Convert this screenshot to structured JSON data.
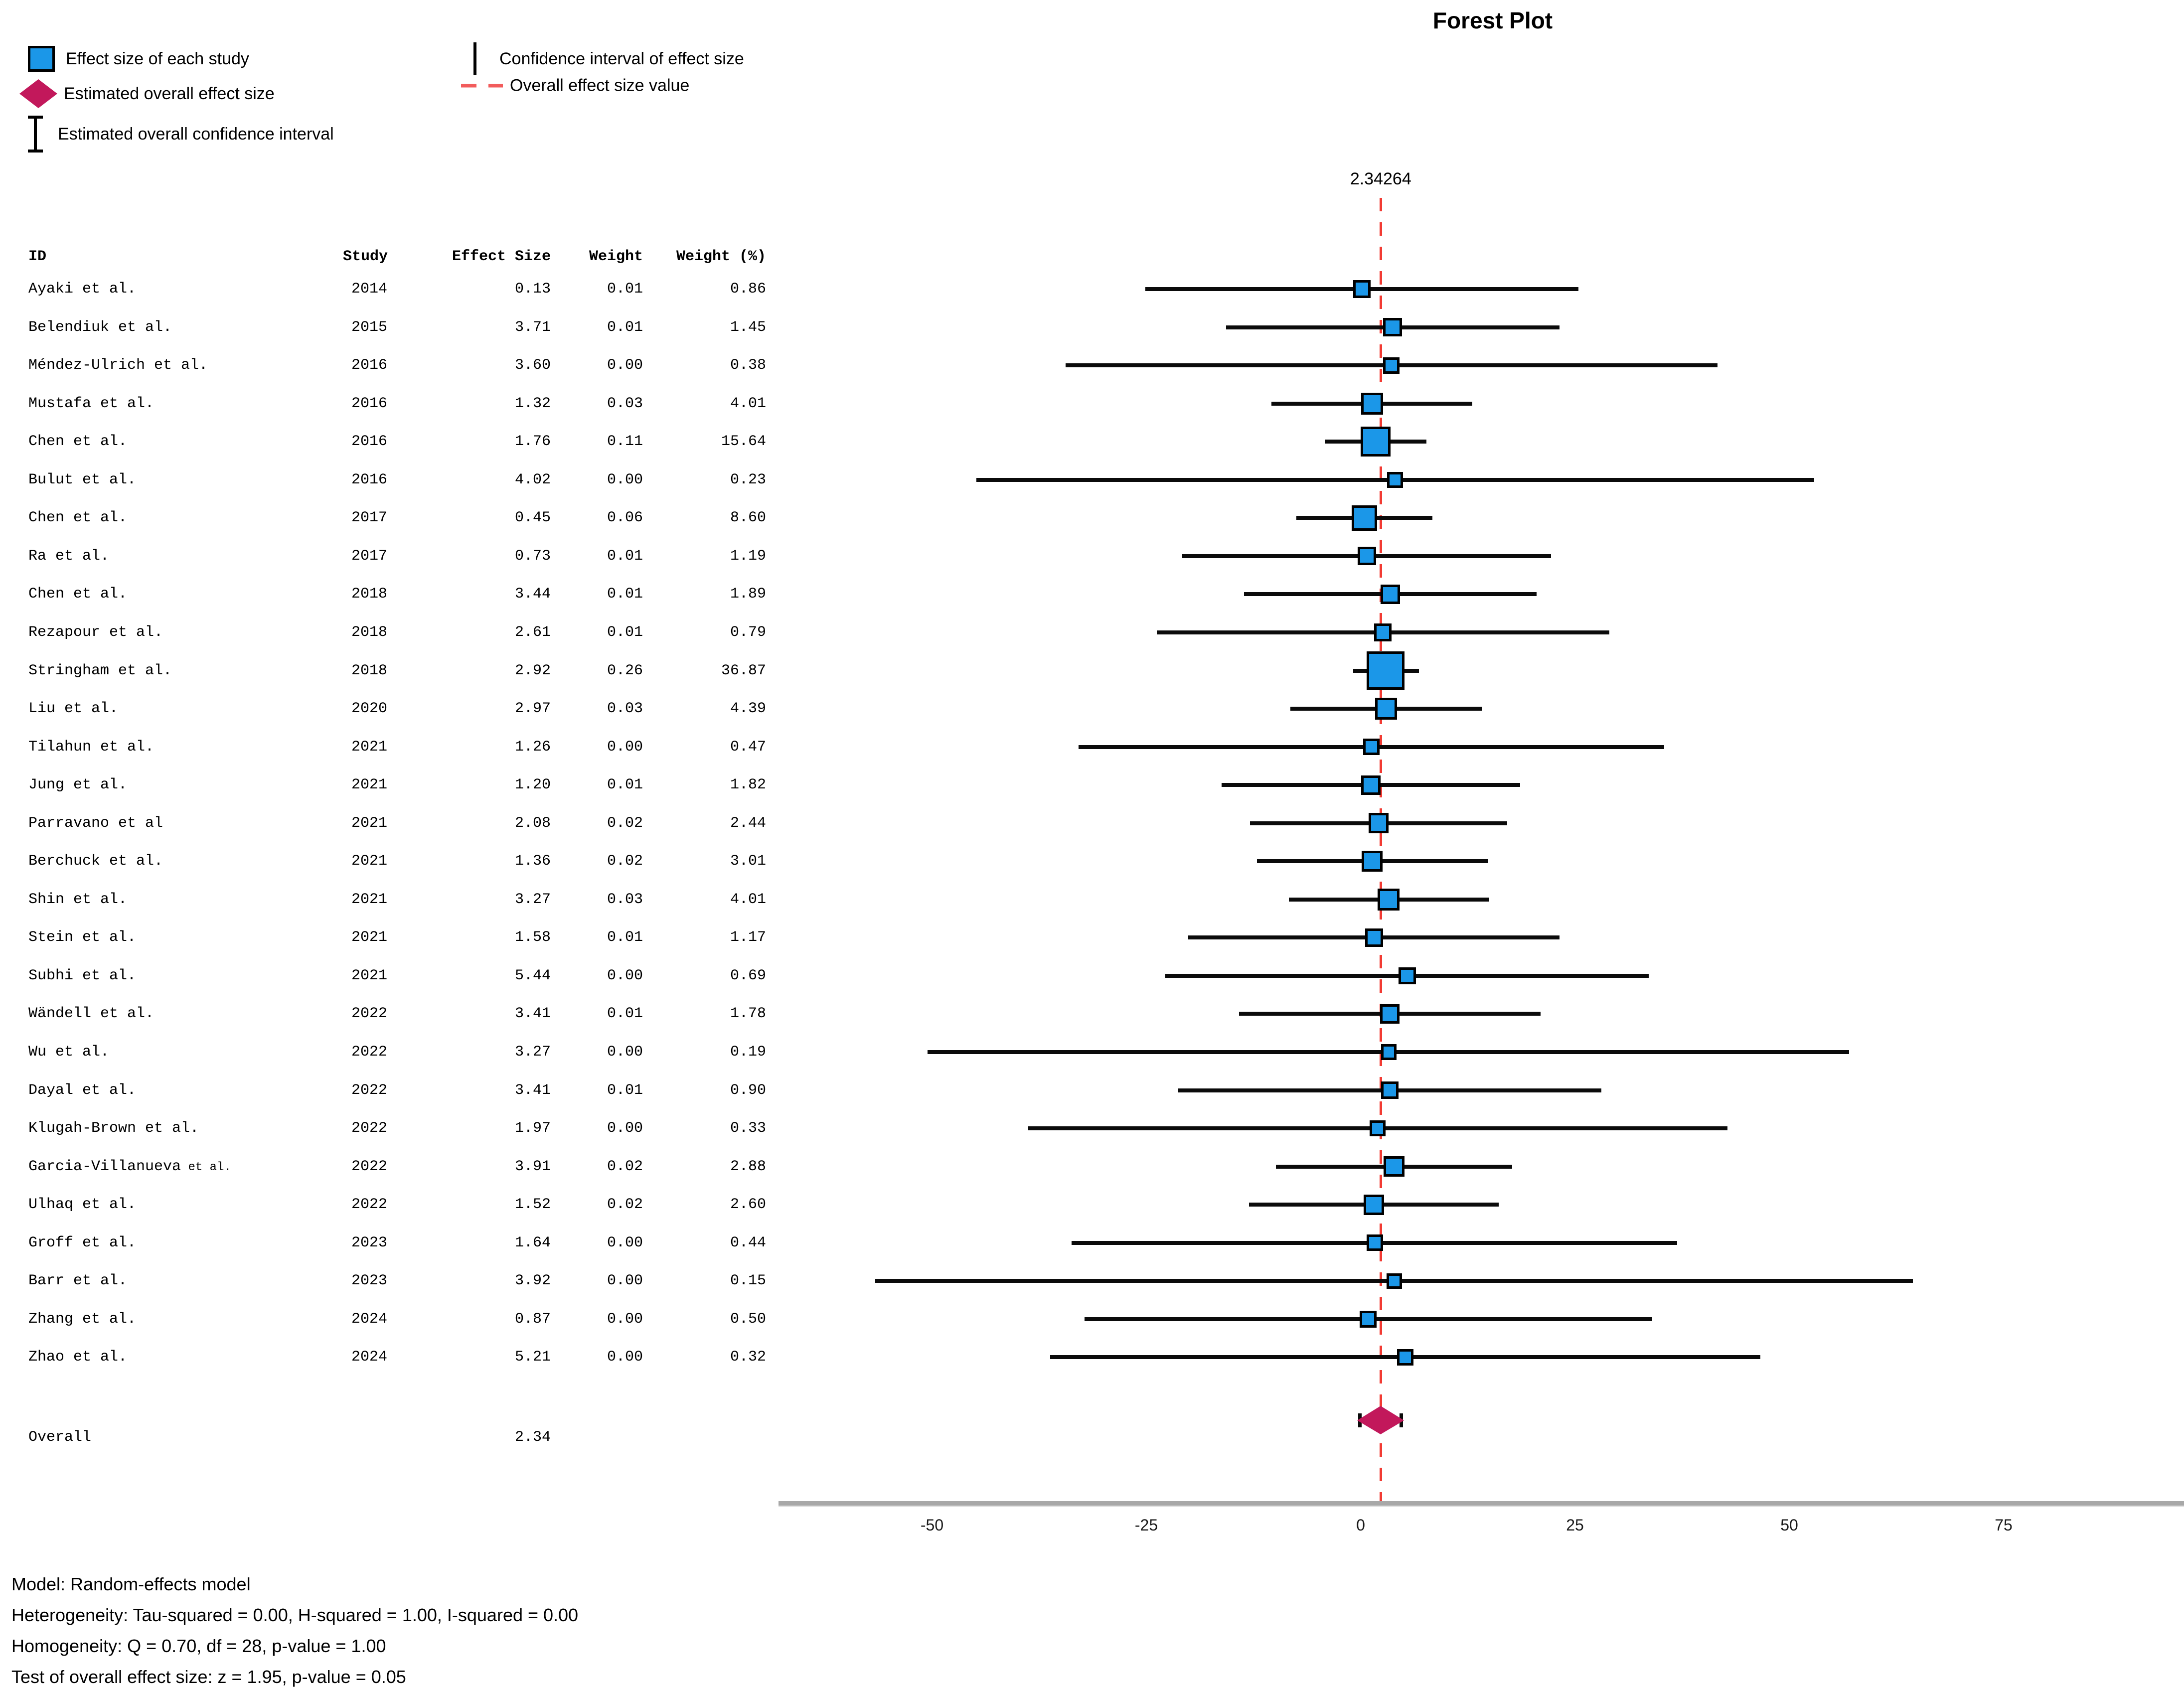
{
  "title": "Forest Plot",
  "effect_line_label": "2.34264",
  "legend": {
    "items": [
      {
        "marker": "square",
        "label": "Effect size of each study"
      },
      {
        "marker": "diamond",
        "label": "Estimated overall effect size"
      },
      {
        "marker": "ibeam",
        "label": "Estimated overall confidence interval"
      },
      {
        "marker": "vline",
        "label": "Confidence interval of effect size"
      },
      {
        "marker": "dashes",
        "label": "Overall effect size value"
      }
    ]
  },
  "table": {
    "headers": [
      "ID",
      "Study",
      "Effect Size",
      "Weight",
      "Weight (%)"
    ]
  },
  "overall": {
    "label": "Overall",
    "effect_text": "2.34",
    "effect": 2.34,
    "ci_low": -0.11,
    "ci_high": 4.79
  },
  "footer": {
    "lines": [
      "Model: Random-effects model",
      "Heterogeneity: Tau-squared = 0.00, H-squared = 1.00, I-squared = 0.00",
      "Homogeneity: Q = 0.70, df = 28, p-value = 1.00",
      "Test of overall effect size: z = 1.95, p-value = 0.05"
    ]
  },
  "colors": {
    "study_marker": "#1b97e8",
    "overall_marker": "#c2185b",
    "ci_line": "#0b0b0b",
    "effect_line": "#f23b33",
    "legend_dash": "#f25c5c",
    "axis_bar": "#a8a8a8"
  },
  "chart_data": {
    "type": "scatter",
    "variant": "forest-plot",
    "title": "Forest Plot",
    "xlabel": "",
    "ylabel": "",
    "x_ticks": [
      -50,
      -25,
      0,
      25,
      50,
      75
    ],
    "x_range": [
      -68,
      96
    ],
    "grid": false,
    "overall_effect": 2.34264,
    "overall_ci": [
      -0.11,
      4.79
    ],
    "studies": [
      {
        "id": "Ayaki et al.",
        "year": "2014",
        "effect": 0.13,
        "weight": 0.01,
        "weight_pct": 0.86,
        "ci_low": -25.1,
        "ci_high": 25.4
      },
      {
        "id": "Belendiuk et al.",
        "year": "2015",
        "effect": 3.71,
        "weight": 0.01,
        "weight_pct": 1.45,
        "ci_low": -15.7,
        "ci_high": 23.2
      },
      {
        "id": "Méndez-Ulrich et al.",
        "year": "2016",
        "effect": 3.6,
        "weight": 0.0,
        "weight_pct": 0.38,
        "ci_low": -34.4,
        "ci_high": 41.6
      },
      {
        "id": "Mustafa et al.",
        "year": "2016",
        "effect": 1.32,
        "weight": 0.03,
        "weight_pct": 4.01,
        "ci_low": -10.4,
        "ci_high": 13.0
      },
      {
        "id": "Chen et al.",
        "year": "2016",
        "effect": 1.76,
        "weight": 0.11,
        "weight_pct": 15.64,
        "ci_low": -4.2,
        "ci_high": 7.7
      },
      {
        "id": "Bulut et al.",
        "year": "2016",
        "effect": 4.02,
        "weight": 0.0,
        "weight_pct": 0.23,
        "ci_low": -44.8,
        "ci_high": 52.9
      },
      {
        "id": "Chen et al.",
        "year": "2017",
        "effect": 0.45,
        "weight": 0.06,
        "weight_pct": 8.6,
        "ci_low": -7.5,
        "ci_high": 8.4
      },
      {
        "id": "Ra et al.",
        "year": "2017",
        "effect": 0.73,
        "weight": 0.01,
        "weight_pct": 1.19,
        "ci_low": -20.8,
        "ci_high": 22.2
      },
      {
        "id": "Chen et al.",
        "year": "2018",
        "effect": 3.44,
        "weight": 0.01,
        "weight_pct": 1.89,
        "ci_low": -13.6,
        "ci_high": 20.5
      },
      {
        "id": "Rezapour et al.",
        "year": "2018",
        "effect": 2.61,
        "weight": 0.01,
        "weight_pct": 0.79,
        "ci_low": -23.8,
        "ci_high": 29.0
      },
      {
        "id": "Stringham et al.",
        "year": "2018",
        "effect": 2.92,
        "weight": 0.26,
        "weight_pct": 36.87,
        "ci_low": -0.9,
        "ci_high": 6.8
      },
      {
        "id": "Liu et al.",
        "year": "2020",
        "effect": 2.97,
        "weight": 0.03,
        "weight_pct": 4.39,
        "ci_low": -8.2,
        "ci_high": 14.2
      },
      {
        "id": "Tilahun et al.",
        "year": "2021",
        "effect": 1.26,
        "weight": 0.0,
        "weight_pct": 0.47,
        "ci_low": -32.9,
        "ci_high": 35.4
      },
      {
        "id": "Jung et al.",
        "year": "2021",
        "effect": 1.2,
        "weight": 0.01,
        "weight_pct": 1.82,
        "ci_low": -16.2,
        "ci_high": 18.6
      },
      {
        "id": "Parravano et al",
        "year": "2021",
        "effect": 2.08,
        "weight": 0.02,
        "weight_pct": 2.44,
        "ci_low": -12.9,
        "ci_high": 17.1
      },
      {
        "id": "Berchuck et al.",
        "year": "2021",
        "effect": 1.36,
        "weight": 0.02,
        "weight_pct": 3.01,
        "ci_low": -12.1,
        "ci_high": 14.9
      },
      {
        "id": "Shin et al.",
        "year": "2021",
        "effect": 3.27,
        "weight": 0.03,
        "weight_pct": 4.01,
        "ci_low": -8.4,
        "ci_high": 15.0
      },
      {
        "id": "Stein et al.",
        "year": "2021",
        "effect": 1.58,
        "weight": 0.01,
        "weight_pct": 1.17,
        "ci_low": -20.1,
        "ci_high": 23.2
      },
      {
        "id": "Subhi et al.",
        "year": "2021",
        "effect": 5.44,
        "weight": 0.0,
        "weight_pct": 0.69,
        "ci_low": -22.8,
        "ci_high": 33.6
      },
      {
        "id": "Wändell et al.",
        "year": "2022",
        "effect": 3.41,
        "weight": 0.01,
        "weight_pct": 1.78,
        "ci_low": -14.2,
        "ci_high": 21.0
      },
      {
        "id": "Wu et al.",
        "year": "2022",
        "effect": 3.27,
        "weight": 0.0,
        "weight_pct": 0.19,
        "ci_low": -50.5,
        "ci_high": 57.0
      },
      {
        "id": "Dayal et al.",
        "year": "2022",
        "effect": 3.41,
        "weight": 0.01,
        "weight_pct": 0.9,
        "ci_low": -21.3,
        "ci_high": 28.1
      },
      {
        "id": "Klugah-Brown et al.",
        "year": "2022",
        "effect": 1.97,
        "weight": 0.0,
        "weight_pct": 0.33,
        "ci_low": -38.8,
        "ci_high": 42.8
      },
      {
        "id": "Garcia-Villanueva",
        "id_small": " et al.",
        "year": "2022",
        "effect": 3.91,
        "weight": 0.02,
        "weight_pct": 2.88,
        "ci_low": -9.9,
        "ci_high": 17.7
      },
      {
        "id": "Ulhaq et al.",
        "year": "2022",
        "effect": 1.52,
        "weight": 0.02,
        "weight_pct": 2.6,
        "ci_low": -13.0,
        "ci_high": 16.1
      },
      {
        "id": "Groff et al.",
        "year": "2023",
        "effect": 1.64,
        "weight": 0.0,
        "weight_pct": 0.44,
        "ci_low": -33.7,
        "ci_high": 36.9
      },
      {
        "id": "Barr et al.",
        "year": "2023",
        "effect": 3.92,
        "weight": 0.0,
        "weight_pct": 0.15,
        "ci_low": -56.6,
        "ci_high": 64.4
      },
      {
        "id": "Zhang et al.",
        "year": "2024",
        "effect": 0.87,
        "weight": 0.0,
        "weight_pct": 0.5,
        "ci_low": -32.2,
        "ci_high": 34.0
      },
      {
        "id": "Zhao et al.",
        "year": "2024",
        "effect": 5.21,
        "weight": 0.0,
        "weight_pct": 0.32,
        "ci_low": -36.2,
        "ci_high": 46.6
      }
    ]
  }
}
